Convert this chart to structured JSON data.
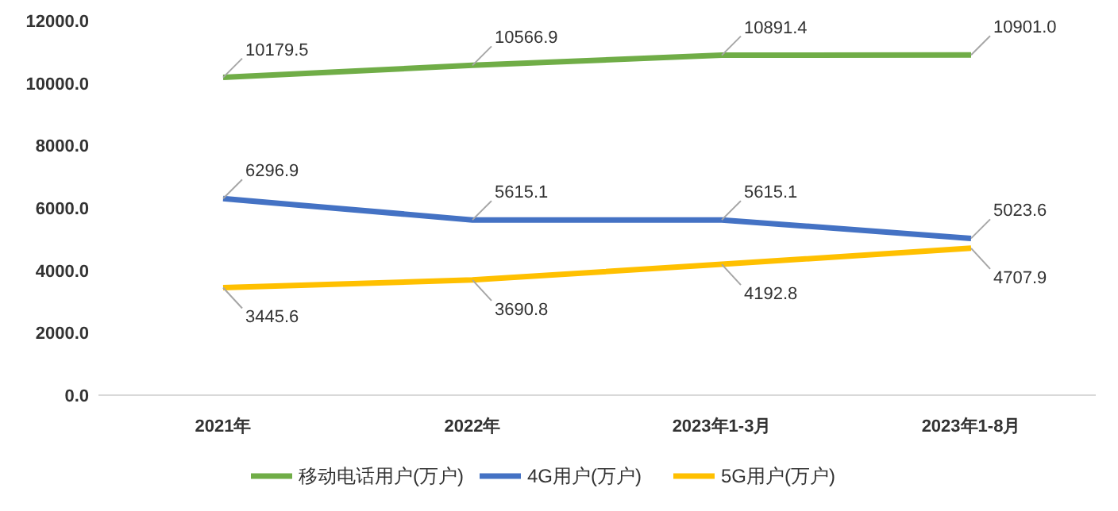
{
  "chart_data": {
    "type": "line",
    "categories": [
      "2021年",
      "2022年",
      "2023年1-3月",
      "2023年1-8月"
    ],
    "series": [
      {
        "name": "移动电话用户(万户)",
        "color": "#70ad47",
        "values": [
          10179.5,
          10566.9,
          10891.4,
          10901
        ],
        "value_labels": [
          "10179.5",
          "10566.9",
          "10891.4",
          "10901.0"
        ]
      },
      {
        "name": "4G用户(万户)",
        "color": "#4472c4",
        "values": [
          6296.9,
          5615.1,
          5615.1,
          5023.6
        ]
      },
      {
        "name": "5G用户(万户)",
        "color": "#ffc000",
        "values": [
          3445.6,
          3690.8,
          4192.8,
          4707.9
        ]
      }
    ],
    "ylim": [
      0,
      12000
    ],
    "yticks": [
      {
        "value": 0,
        "label": "0.0"
      },
      {
        "value": 2000,
        "label": "2000.0"
      },
      {
        "value": 4000,
        "label": "4000.0"
      },
      {
        "value": 6000,
        "label": "6000.0"
      },
      {
        "value": 8000,
        "label": "8000.0"
      },
      {
        "value": 10000,
        "label": "10000.0"
      },
      {
        "value": 12000,
        "label": "12000.0"
      }
    ],
    "data_labels": true,
    "legend": "bottom",
    "grid": false,
    "marker": "none",
    "line_style": "solid"
  }
}
